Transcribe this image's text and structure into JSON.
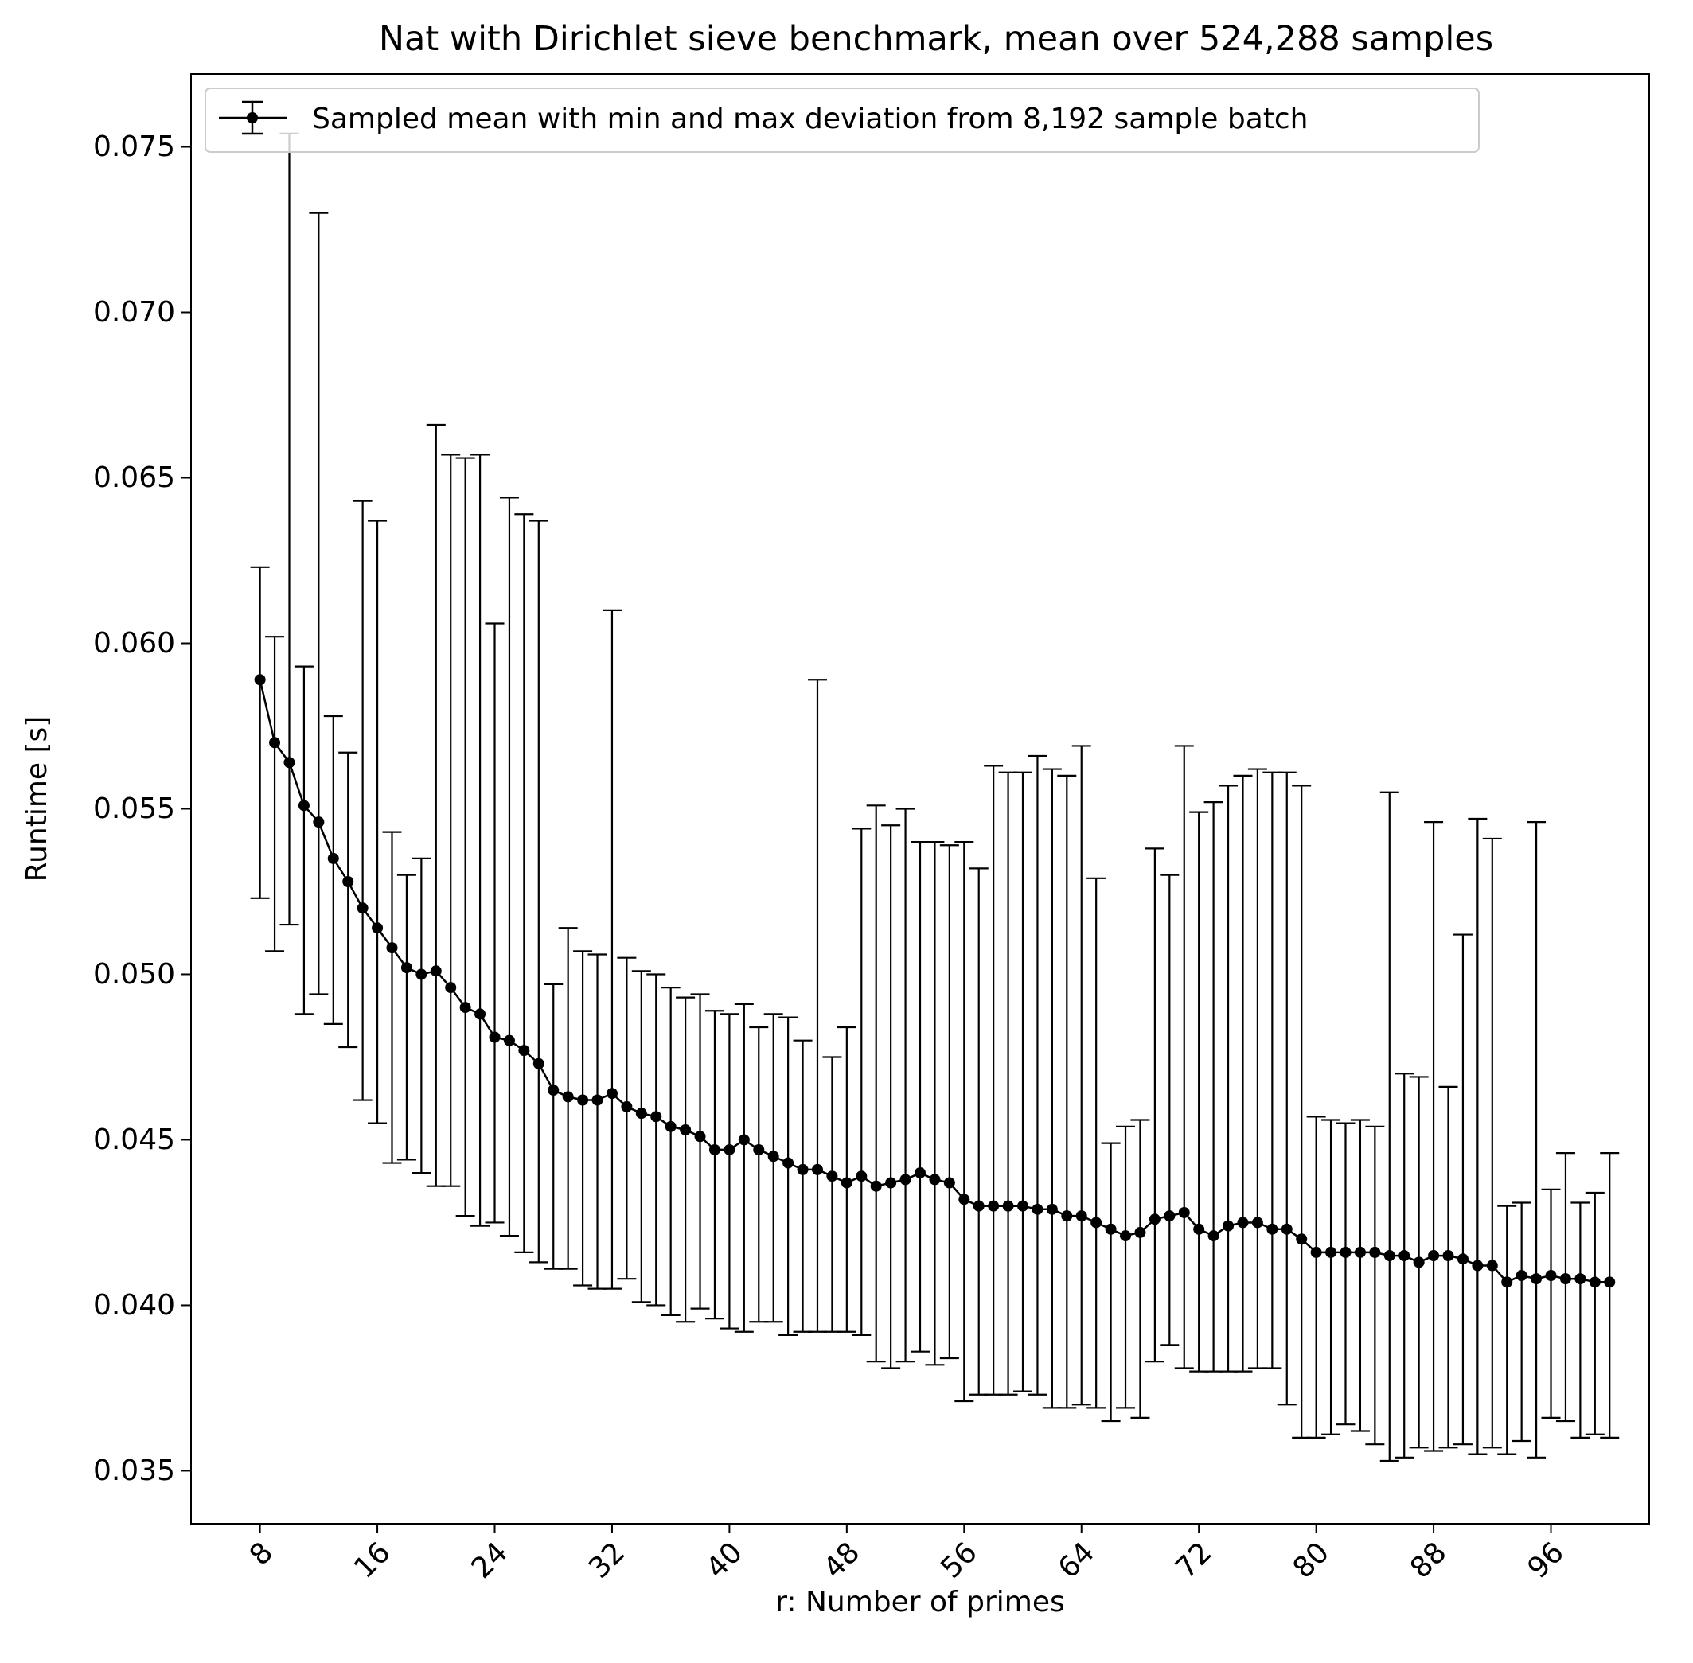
{
  "chart_data": {
    "type": "line",
    "title": "Nat with Dirichlet sieve benchmark, mean over 524,288 samples",
    "xlabel": "r: Number of primes",
    "ylabel": "Runtime [s]",
    "xlim": [
      3.3,
      102.7
    ],
    "ylim": [
      0.0334,
      0.0772
    ],
    "x_ticks": [
      8,
      16,
      24,
      32,
      40,
      48,
      56,
      64,
      72,
      80,
      88,
      96
    ],
    "y_ticks": [
      0.035,
      0.04,
      0.045,
      0.05,
      0.055,
      0.06,
      0.065,
      0.07,
      0.075
    ],
    "y_tick_labels": [
      "0.035",
      "0.040",
      "0.045",
      "0.050",
      "0.055",
      "0.060",
      "0.065",
      "0.070",
      "0.075"
    ],
    "x_tick_rotation": 45,
    "grid": false,
    "legend_position": "top-left",
    "colors": {
      "series": "#000000",
      "background": "#ffffff"
    },
    "series": [
      {
        "name": "Sampled mean with min and max deviation from 8,192 sample batch",
        "x": [
          8,
          9,
          10,
          11,
          12,
          13,
          14,
          15,
          16,
          17,
          18,
          19,
          20,
          21,
          22,
          23,
          24,
          25,
          26,
          27,
          28,
          29,
          30,
          31,
          32,
          33,
          34,
          35,
          36,
          37,
          38,
          39,
          40,
          41,
          42,
          43,
          44,
          45,
          46,
          47,
          48,
          49,
          50,
          51,
          52,
          53,
          54,
          55,
          56,
          57,
          58,
          59,
          60,
          61,
          62,
          63,
          64,
          65,
          66,
          67,
          68,
          69,
          70,
          71,
          72,
          73,
          74,
          75,
          76,
          77,
          78,
          79,
          80,
          81,
          82,
          83,
          84,
          85,
          86,
          87,
          88,
          89,
          90,
          91,
          92,
          93,
          94,
          95,
          96,
          97,
          98,
          99,
          100
        ],
        "y": [
          0.0589,
          0.057,
          0.0564,
          0.0551,
          0.0546,
          0.0535,
          0.0528,
          0.052,
          0.0514,
          0.0508,
          0.0502,
          0.05,
          0.0501,
          0.0496,
          0.049,
          0.0488,
          0.0481,
          0.048,
          0.0477,
          0.0473,
          0.0465,
          0.0463,
          0.0462,
          0.0462,
          0.0464,
          0.046,
          0.0458,
          0.0457,
          0.0454,
          0.0453,
          0.0451,
          0.0447,
          0.0447,
          0.045,
          0.0447,
          0.0445,
          0.0443,
          0.0441,
          0.0441,
          0.0439,
          0.0437,
          0.0439,
          0.0436,
          0.0437,
          0.0438,
          0.044,
          0.0438,
          0.0437,
          0.0432,
          0.043,
          0.043,
          0.043,
          0.043,
          0.0429,
          0.0429,
          0.0427,
          0.0427,
          0.0425,
          0.0423,
          0.0421,
          0.0422,
          0.0426,
          0.0427,
          0.0428,
          0.0423,
          0.0421,
          0.0424,
          0.0425,
          0.0425,
          0.0423,
          0.0423,
          0.042,
          0.0416,
          0.0416,
          0.0416,
          0.0416,
          0.0416,
          0.0415,
          0.0415,
          0.0413,
          0.0415,
          0.0415,
          0.0414,
          0.0412,
          0.0412,
          0.0407,
          0.0409,
          0.0408,
          0.0409,
          0.0408,
          0.0408,
          0.0407,
          0.0407
        ],
        "y_min": [
          0.0523,
          0.0507,
          0.0515,
          0.0488,
          0.0494,
          0.0485,
          0.0478,
          0.0462,
          0.0455,
          0.0443,
          0.0444,
          0.044,
          0.0436,
          0.0436,
          0.0427,
          0.0424,
          0.0425,
          0.0421,
          0.0416,
          0.0413,
          0.0411,
          0.0411,
          0.0406,
          0.0405,
          0.0405,
          0.0408,
          0.0401,
          0.04,
          0.0397,
          0.0395,
          0.0399,
          0.0396,
          0.0393,
          0.0392,
          0.0395,
          0.0395,
          0.0391,
          0.0392,
          0.0392,
          0.0392,
          0.0392,
          0.0391,
          0.0383,
          0.0381,
          0.0383,
          0.0386,
          0.0382,
          0.0384,
          0.0371,
          0.0373,
          0.0373,
          0.0373,
          0.0374,
          0.0373,
          0.0369,
          0.0369,
          0.037,
          0.0369,
          0.0365,
          0.0369,
          0.0366,
          0.0383,
          0.0388,
          0.0381,
          0.038,
          0.038,
          0.038,
          0.038,
          0.0381,
          0.0381,
          0.037,
          0.036,
          0.036,
          0.0361,
          0.0364,
          0.0362,
          0.0358,
          0.0353,
          0.0354,
          0.0357,
          0.0356,
          0.0357,
          0.0358,
          0.0355,
          0.0357,
          0.0355,
          0.0359,
          0.0354,
          0.0366,
          0.0365,
          0.036,
          0.0361,
          0.036
        ],
        "y_max": [
          0.0623,
          0.0602,
          0.0754,
          0.0593,
          0.073,
          0.0578,
          0.0567,
          0.0643,
          0.0637,
          0.0543,
          0.053,
          0.0535,
          0.0666,
          0.0657,
          0.0656,
          0.0657,
          0.0606,
          0.0644,
          0.0639,
          0.0637,
          0.0497,
          0.0514,
          0.0507,
          0.0506,
          0.061,
          0.0505,
          0.0501,
          0.05,
          0.0496,
          0.0493,
          0.0494,
          0.0489,
          0.0488,
          0.0491,
          0.0484,
          0.0488,
          0.0487,
          0.048,
          0.0589,
          0.0475,
          0.0484,
          0.0544,
          0.0551,
          0.0545,
          0.055,
          0.054,
          0.054,
          0.0539,
          0.054,
          0.0532,
          0.0563,
          0.0561,
          0.0561,
          0.0566,
          0.0562,
          0.056,
          0.0569,
          0.0529,
          0.0449,
          0.0454,
          0.0456,
          0.0538,
          0.053,
          0.0569,
          0.0549,
          0.0552,
          0.0557,
          0.056,
          0.0562,
          0.0561,
          0.0561,
          0.0557,
          0.0457,
          0.0456,
          0.0455,
          0.0456,
          0.0454,
          0.0555,
          0.047,
          0.0469,
          0.0546,
          0.0466,
          0.0512,
          0.0547,
          0.0541,
          0.043,
          0.0431,
          0.0546,
          0.0435,
          0.0446,
          0.0431,
          0.0434,
          0.0446
        ]
      }
    ]
  }
}
